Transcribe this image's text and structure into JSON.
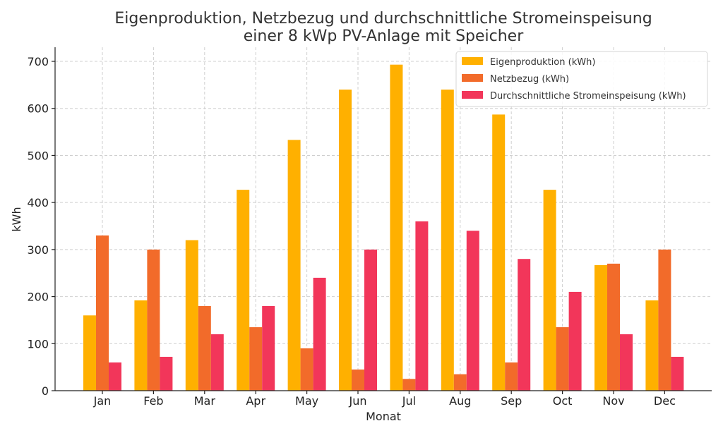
{
  "chart_data": {
    "type": "bar",
    "title": "Eigenproduktion, Netzbezug und durchschnittliche Stromeinspeisung einer 8 kWp PV-Anlage mit Speicher",
    "title_lines": [
      "Eigenproduktion, Netzbezug und durchschnittliche Stromeinspeisung",
      "einer 8 kWp PV-Anlage mit Speicher"
    ],
    "xlabel": "Monat",
    "ylabel": "kWh",
    "categories": [
      "Jan",
      "Feb",
      "Mar",
      "Apr",
      "May",
      "Jun",
      "Jul",
      "Aug",
      "Sep",
      "Oct",
      "Nov",
      "Dec"
    ],
    "ylim": [
      0,
      730
    ],
    "yticks": [
      0,
      100,
      200,
      300,
      400,
      500,
      600,
      700
    ],
    "grid": true,
    "legend_position": "top-right",
    "series": [
      {
        "name": "Eigenproduktion (kWh)",
        "color": "#FFB000",
        "values": [
          160,
          192,
          320,
          427,
          533,
          640,
          693,
          640,
          587,
          427,
          267,
          192
        ]
      },
      {
        "name": "Netzbezug (kWh)",
        "color": "#F26B2A",
        "values": [
          330,
          300,
          180,
          135,
          90,
          45,
          25,
          35,
          60,
          135,
          270,
          300
        ]
      },
      {
        "name": "Durchschnittliche Stromeinspeisung (kWh)",
        "color": "#F2365A",
        "values": [
          60,
          72,
          120,
          180,
          240,
          300,
          360,
          340,
          280,
          210,
          120,
          72
        ]
      }
    ]
  }
}
